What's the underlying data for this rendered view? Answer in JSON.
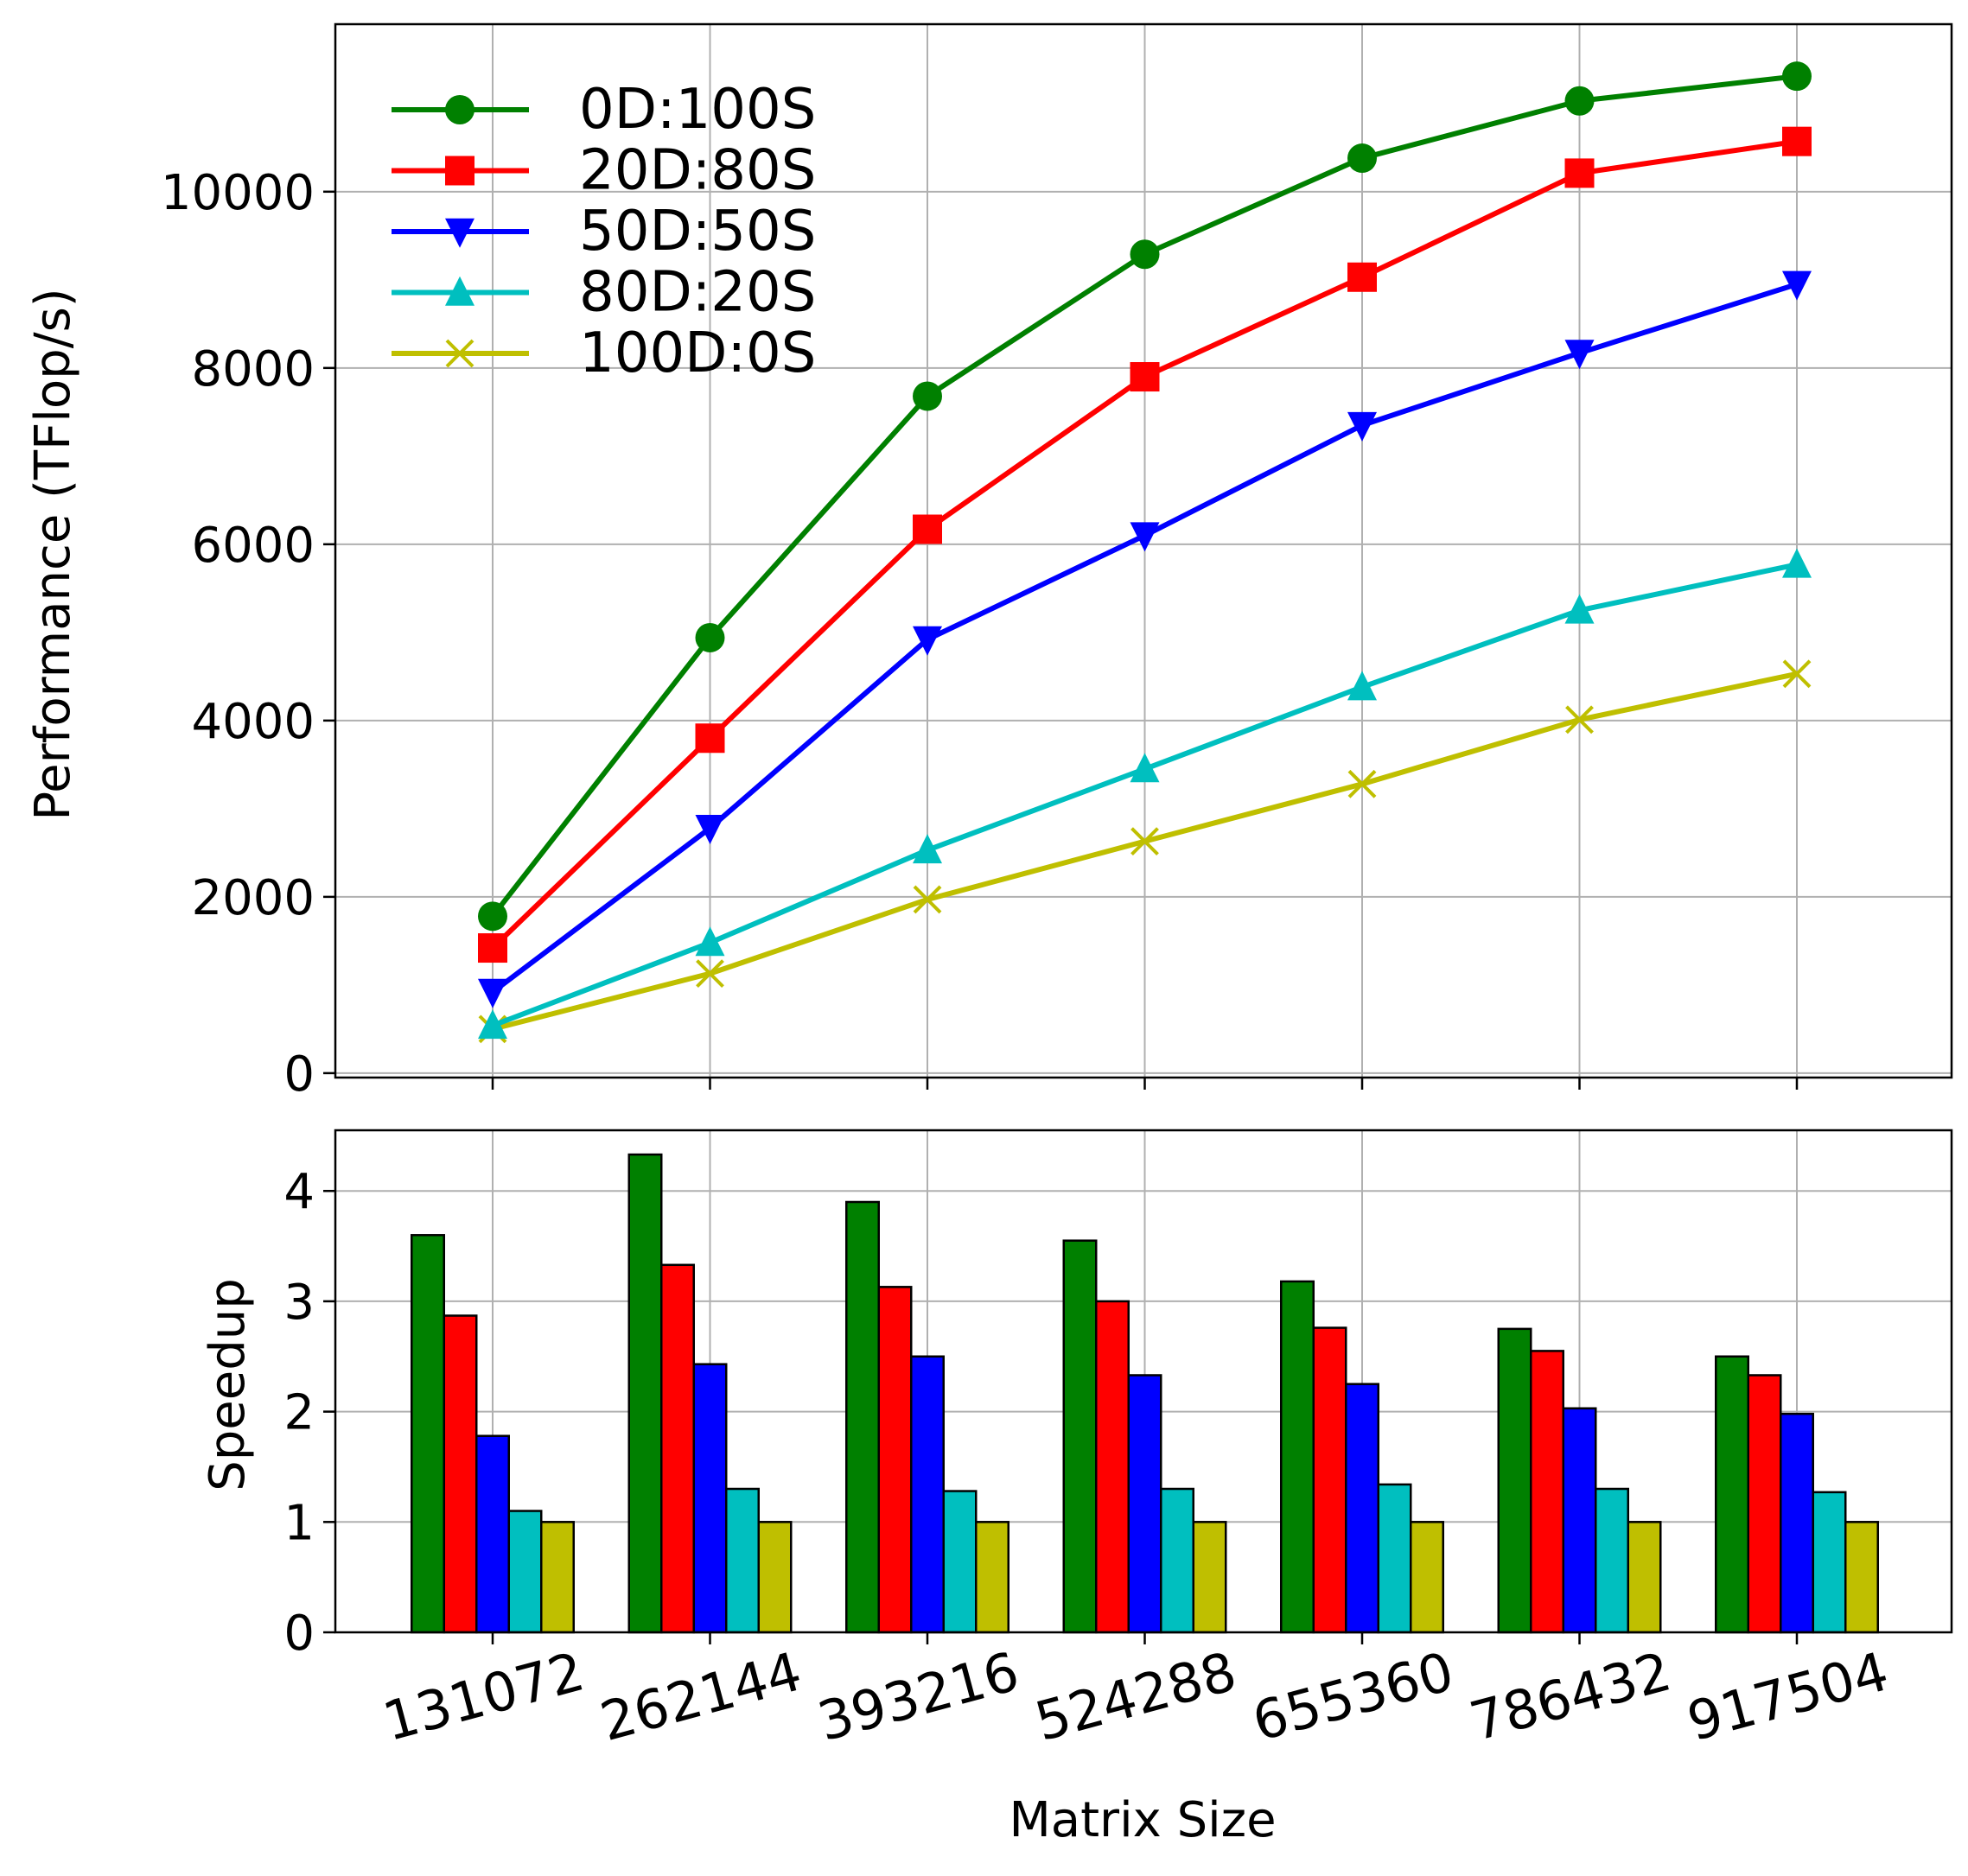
{
  "chart_data": [
    {
      "type": "line",
      "title": "",
      "xlabel": "",
      "ylabel": "Performance (TFlop/s)",
      "categories": [
        "131072",
        "262144",
        "393216",
        "524288",
        "655360",
        "786432",
        "917504"
      ],
      "ylim": [
        -50,
        11900
      ],
      "yticks": [
        0,
        2000,
        4000,
        6000,
        8000,
        10000
      ],
      "ytick_labels": [
        "0",
        "2000",
        "4000",
        "6000",
        "8000",
        "10000"
      ],
      "grid": true,
      "legend": "top-left",
      "series": [
        {
          "name": "0D:100S",
          "color": "#008000",
          "marker": "circle",
          "values": [
            1780,
            4940,
            7680,
            9290,
            10380,
            11030,
            11310
          ]
        },
        {
          "name": "20D:80S",
          "color": "#ff0000",
          "marker": "square",
          "values": [
            1420,
            3800,
            6170,
            7900,
            9030,
            10210,
            10570
          ]
        },
        {
          "name": "50D:50S",
          "color": "#0000ff",
          "marker": "triangle-down",
          "values": [
            920,
            2780,
            4920,
            6100,
            7350,
            8170,
            8950
          ]
        },
        {
          "name": "80D:20S",
          "color": "#00bfbf",
          "marker": "triangle-up",
          "values": [
            540,
            1480,
            2530,
            3450,
            4380,
            5250,
            5770
          ]
        },
        {
          "name": "100D:0S",
          "color": "#bfbf00",
          "marker": "x",
          "values": [
            500,
            1130,
            1970,
            2630,
            3280,
            4010,
            4530
          ]
        }
      ]
    },
    {
      "type": "bar",
      "title": "",
      "xlabel": "Matrix Size",
      "ylabel": "Speedup",
      "categories": [
        "131072",
        "262144",
        "393216",
        "524288",
        "655360",
        "786432",
        "917504"
      ],
      "ylim": [
        0,
        4.55
      ],
      "yticks": [
        0,
        1,
        2,
        3,
        4
      ],
      "ytick_labels": [
        "0",
        "1",
        "2",
        "3",
        "4"
      ],
      "grid": true,
      "series": [
        {
          "color": "#008000",
          "values": [
            3.6,
            4.33,
            3.9,
            3.55,
            3.18,
            2.75,
            2.5
          ]
        },
        {
          "color": "#ff0000",
          "values": [
            2.87,
            3.33,
            3.13,
            3.0,
            2.76,
            2.55,
            2.33
          ]
        },
        {
          "color": "#0000ff",
          "values": [
            1.78,
            2.43,
            2.5,
            2.33,
            2.25,
            2.03,
            1.98
          ]
        },
        {
          "color": "#00bfbf",
          "values": [
            1.1,
            1.3,
            1.28,
            1.3,
            1.34,
            1.3,
            1.27
          ]
        },
        {
          "color": "#bfbf00",
          "values": [
            1.0,
            1.0,
            1.0,
            1.0,
            1.0,
            1.0,
            1.0
          ]
        }
      ]
    }
  ]
}
